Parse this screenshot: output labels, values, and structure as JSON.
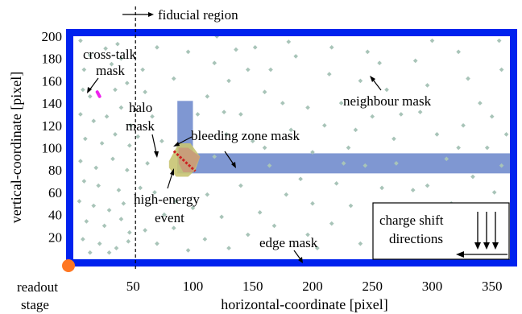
{
  "chart_data": {
    "type": "scatter",
    "xlabel": "horizontal-coordinate [pixel]",
    "ylabel": "vertical-coordinate [pixel]",
    "xlim": [
      0,
      365
    ],
    "ylim": [
      0,
      200
    ],
    "x_ticks": [
      50,
      100,
      150,
      200,
      250,
      300,
      350
    ],
    "y_ticks": [
      20,
      40,
      60,
      80,
      100,
      120,
      140,
      160,
      180,
      200
    ],
    "grid": false,
    "fiducial_x": 52,
    "colors": {
      "edge_mask": "#0022ee",
      "bleeding_zone": "#7f97d2",
      "halo": "#c8c472",
      "event": "#cc2222",
      "crosstalk": "#ee22ee",
      "neighbour": "#a8c4b8",
      "readout": "#ff7722"
    },
    "masks": {
      "bleeding_vertical": {
        "x": [
          87,
          100
        ],
        "y": [
          80,
          142
        ]
      },
      "bleeding_horizontal": {
        "x": [
          87,
          365
        ],
        "y": [
          77,
          95
        ]
      },
      "halo": [
        [
          80,
          88
        ],
        [
          88,
          104
        ],
        [
          98,
          104
        ],
        [
          106,
          92
        ],
        [
          102,
          80
        ],
        [
          96,
          74
        ],
        [
          86,
          74
        ],
        [
          80,
          82
        ]
      ],
      "bleeding_core": [
        [
          88,
          100
        ],
        [
          96,
          100
        ],
        [
          106,
          92
        ],
        [
          100,
          78
        ],
        [
          92,
          78
        ],
        [
          88,
          86
        ]
      ],
      "high_energy_event": [
        [
          84,
          97
        ],
        [
          102,
          79
        ]
      ],
      "crosstalk": [
        [
          20,
          150
        ],
        [
          22,
          146
        ]
      ]
    },
    "neighbour_points": [
      [
        6,
        196
      ],
      [
        14,
        183
      ],
      [
        27,
        189
      ],
      [
        37,
        193
      ],
      [
        9,
        170
      ],
      [
        32,
        175
      ],
      [
        40,
        180
      ],
      [
        8,
        152
      ],
      [
        14,
        146
      ],
      [
        35,
        152
      ],
      [
        45,
        158
      ],
      [
        6,
        130
      ],
      [
        17,
        124
      ],
      [
        28,
        128
      ],
      [
        40,
        136
      ],
      [
        48,
        120
      ],
      [
        10,
        108
      ],
      [
        24,
        104
      ],
      [
        35,
        112
      ],
      [
        47,
        102
      ],
      [
        6,
        88
      ],
      [
        19,
        82
      ],
      [
        33,
        90
      ],
      [
        45,
        80
      ],
      [
        9,
        70
      ],
      [
        21,
        66
      ],
      [
        38,
        62
      ],
      [
        5,
        52
      ],
      [
        17,
        48
      ],
      [
        30,
        44
      ],
      [
        42,
        50
      ],
      [
        11,
        34
      ],
      [
        26,
        30
      ],
      [
        40,
        36
      ],
      [
        47,
        24
      ],
      [
        8,
        18
      ],
      [
        22,
        14
      ],
      [
        36,
        10
      ],
      [
        46,
        16
      ],
      [
        14,
        6
      ],
      [
        30,
        6
      ],
      [
        58,
        170
      ],
      [
        70,
        190
      ],
      [
        84,
        162
      ],
      [
        96,
        186
      ],
      [
        60,
        150
      ],
      [
        66,
        128
      ],
      [
        74,
        106
      ],
      [
        62,
        86
      ],
      [
        68,
        60
      ],
      [
        76,
        40
      ],
      [
        60,
        26
      ],
      [
        70,
        14
      ],
      [
        84,
        28
      ],
      [
        96,
        8
      ],
      [
        86,
        52
      ],
      [
        100,
        46
      ],
      [
        112,
        58
      ],
      [
        124,
        38
      ],
      [
        110,
        18
      ],
      [
        118,
        176
      ],
      [
        130,
        160
      ],
      [
        136,
        188
      ],
      [
        140,
        130
      ],
      [
        128,
        112
      ],
      [
        150,
        106
      ],
      [
        118,
        92
      ],
      [
        140,
        66
      ],
      [
        156,
        42
      ],
      [
        146,
        22
      ],
      [
        130,
        10
      ],
      [
        165,
        170
      ],
      [
        175,
        140
      ],
      [
        186,
        182
      ],
      [
        182,
        116
      ],
      [
        160,
        100
      ],
      [
        200,
        96
      ],
      [
        190,
        72
      ],
      [
        178,
        58
      ],
      [
        168,
        30
      ],
      [
        196,
        22
      ],
      [
        204,
        10
      ],
      [
        214,
        166
      ],
      [
        224,
        140
      ],
      [
        210,
        120
      ],
      [
        230,
        100
      ],
      [
        220,
        68
      ],
      [
        232,
        48
      ],
      [
        216,
        32
      ],
      [
        240,
        14
      ],
      [
        246,
        186
      ],
      [
        256,
        176
      ],
      [
        262,
        152
      ],
      [
        250,
        128
      ],
      [
        268,
        108
      ],
      [
        244,
        84
      ],
      [
        258,
        64
      ],
      [
        276,
        40
      ],
      [
        262,
        24
      ],
      [
        280,
        8
      ],
      [
        286,
        178
      ],
      [
        296,
        156
      ],
      [
        290,
        132
      ],
      [
        304,
        112
      ],
      [
        312,
        90
      ],
      [
        296,
        66
      ],
      [
        316,
        50
      ],
      [
        300,
        30
      ],
      [
        310,
        12
      ],
      [
        322,
        186
      ],
      [
        330,
        162
      ],
      [
        340,
        140
      ],
      [
        326,
        120
      ],
      [
        346,
        100
      ],
      [
        334,
        74
      ],
      [
        352,
        60
      ],
      [
        340,
        44
      ],
      [
        356,
        196
      ],
      [
        358,
        170
      ],
      [
        350,
        128
      ],
      [
        362,
        112
      ],
      [
        358,
        84
      ],
      [
        180,
        195
      ],
      [
        120,
        200
      ],
      [
        300,
        196
      ],
      [
        216,
        190
      ],
      [
        152,
        190
      ],
      [
        54,
        110
      ],
      [
        56,
        64
      ],
      [
        104,
        130
      ],
      [
        112,
        146
      ],
      [
        126,
        132
      ],
      [
        160,
        150
      ],
      [
        146,
        170
      ],
      [
        240,
        160
      ],
      [
        274,
        130
      ],
      [
        322,
        100
      ],
      [
        226,
        86
      ],
      [
        270,
        86
      ],
      [
        164,
        84
      ],
      [
        196,
        136
      ],
      [
        236,
        116
      ],
      [
        284,
        62
      ],
      [
        200,
        50
      ],
      [
        328,
        26
      ],
      [
        358,
        30
      ]
    ]
  },
  "annotations": {
    "fiducial": "fiducial region",
    "crosstalk": [
      "cross-talk",
      "mask"
    ],
    "halo": [
      "halo",
      "mask"
    ],
    "bleeding": "bleeding zone mask",
    "event": [
      "high-energy",
      "event"
    ],
    "neighbour": "neighbour mask",
    "edge": "edge mask",
    "charge_shift": [
      "charge shift",
      "directions"
    ],
    "readout": [
      "readout",
      "stage"
    ]
  }
}
